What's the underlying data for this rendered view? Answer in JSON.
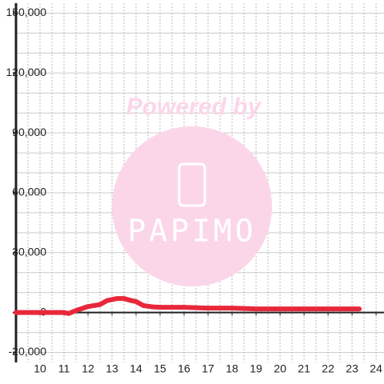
{
  "chart_data": {
    "type": "line",
    "watermark": {
      "text": "Powered by",
      "logo": "PAPIMO"
    },
    "x": [
      9,
      10,
      11,
      11.2,
      11.5,
      12,
      12.5,
      12.8,
      13.2,
      13.5,
      13.8,
      14,
      14.3,
      14.7,
      15,
      16,
      17,
      18,
      19,
      20,
      21,
      22,
      23,
      23.3
    ],
    "series": [
      {
        "color": "#e8283a",
        "values": [
          0,
          0,
          0,
          -500,
          1000,
          3000,
          4000,
          6000,
          7000,
          7000,
          6000,
          5500,
          3500,
          2800,
          2600,
          2600,
          2200,
          2200,
          1800,
          1800,
          1800,
          1800,
          1800,
          1800
        ]
      }
    ],
    "xlim": [
      9,
      24.33
    ],
    "xticks": [
      10,
      11,
      12,
      13,
      14,
      15,
      16,
      17,
      18,
      19,
      20,
      21,
      22,
      23,
      24
    ],
    "ylim": [
      -25000,
      155000
    ],
    "yticks": [
      {
        "value": -20000,
        "label": "-20,000"
      },
      0,
      {
        "value": 30000,
        "label": "30,000"
      },
      {
        "value": 60000,
        "label": "60,000"
      },
      {
        "value": 90000,
        "label": "90,000"
      },
      {
        "value": 120000,
        "label": "120,000"
      },
      {
        "value": 150000,
        "label": "150,000"
      }
    ],
    "grid": true,
    "x_grid_step": 0.5,
    "y_grid_step": 10000
  }
}
